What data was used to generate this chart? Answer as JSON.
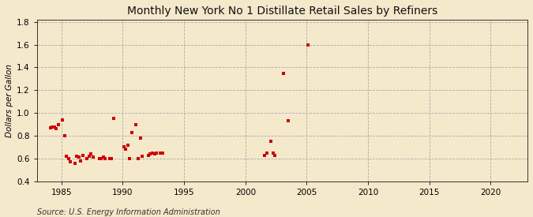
{
  "title": "Monthly New York No 1 Distillate Retail Sales by Refiners",
  "ylabel": "Dollars per Gallon",
  "source": "Source: U.S. Energy Information Administration",
  "background_color": "#f5e9cc",
  "xlim": [
    1983,
    2023
  ],
  "ylim": [
    0.4,
    1.82
  ],
  "xticks": [
    1985,
    1990,
    1995,
    2000,
    2005,
    2010,
    2015,
    2020
  ],
  "yticks": [
    0.4,
    0.6,
    0.8,
    1.0,
    1.2,
    1.4,
    1.6,
    1.8
  ],
  "marker_color": "#cc0000",
  "marker_size": 3.5,
  "data_x": [
    1984.08,
    1984.25,
    1984.42,
    1984.58,
    1984.75,
    1985.08,
    1985.25,
    1985.42,
    1985.58,
    1985.75,
    1986.08,
    1986.25,
    1986.42,
    1986.58,
    1986.75,
    1987.08,
    1987.25,
    1987.42,
    1987.58,
    1988.08,
    1988.25,
    1988.42,
    1988.58,
    1988.92,
    1989.08,
    1989.25,
    1990.08,
    1990.25,
    1990.42,
    1990.58,
    1990.75,
    1991.08,
    1991.25,
    1991.42,
    1991.58,
    1992.08,
    1992.25,
    1992.42,
    1992.58,
    1992.75,
    1993.08,
    1993.25,
    2001.58,
    2001.75,
    2002.08,
    2002.25,
    2002.42,
    2003.08,
    2003.5,
    2005.08
  ],
  "data_y": [
    0.87,
    0.88,
    0.88,
    0.86,
    0.9,
    0.94,
    0.8,
    0.62,
    0.6,
    0.57,
    0.56,
    0.62,
    0.61,
    0.58,
    0.63,
    0.6,
    0.62,
    0.64,
    0.61,
    0.6,
    0.6,
    0.61,
    0.6,
    0.6,
    0.6,
    0.95,
    0.7,
    0.68,
    0.72,
    0.6,
    0.83,
    0.9,
    0.6,
    0.78,
    0.62,
    0.63,
    0.64,
    0.65,
    0.64,
    0.65,
    0.65,
    0.65,
    0.63,
    0.65,
    0.75,
    0.65,
    0.63,
    1.35,
    0.93,
    1.6
  ]
}
